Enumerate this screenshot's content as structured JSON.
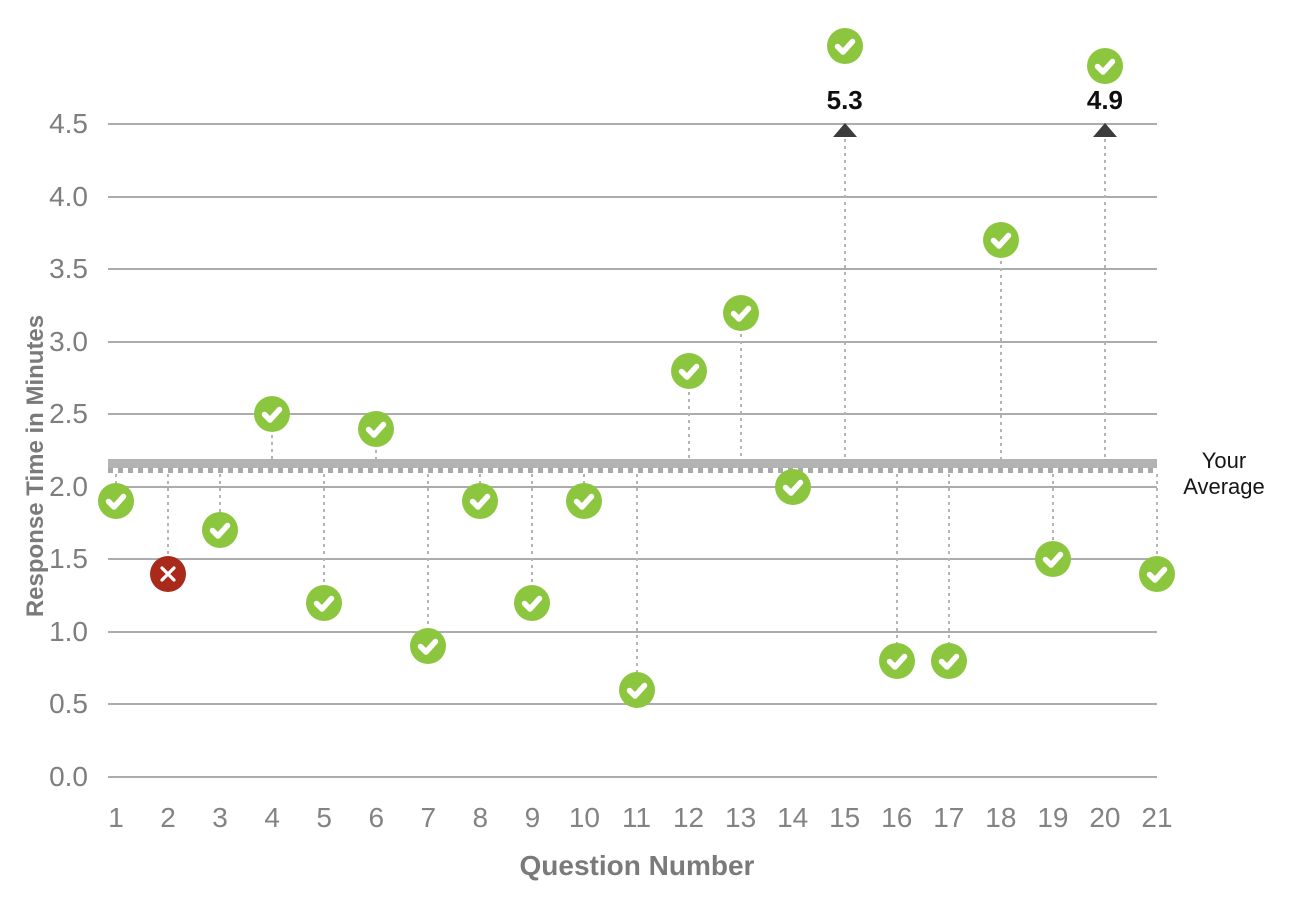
{
  "chart_data": {
    "type": "scatter",
    "title": "",
    "xlabel": "Question Number",
    "ylabel": "Response Time in Minutes",
    "x": [
      1,
      2,
      3,
      4,
      5,
      6,
      7,
      8,
      9,
      10,
      11,
      12,
      13,
      14,
      15,
      16,
      17,
      18,
      19,
      20,
      21
    ],
    "values": [
      1.9,
      1.4,
      1.7,
      2.5,
      1.2,
      2.4,
      0.9,
      1.9,
      1.2,
      1.9,
      0.6,
      2.8,
      3.2,
      2.0,
      5.3,
      0.8,
      0.8,
      3.7,
      1.5,
      4.9,
      1.4
    ],
    "status": [
      "correct",
      "incorrect",
      "correct",
      "correct",
      "correct",
      "correct",
      "correct",
      "correct",
      "correct",
      "correct",
      "correct",
      "correct",
      "correct",
      "correct",
      "correct",
      "correct",
      "correct",
      "correct",
      "correct",
      "correct",
      "correct"
    ],
    "yticks": [
      "0.0",
      "0.5",
      "1.0",
      "1.5",
      "2.0",
      "2.5",
      "3.0",
      "3.5",
      "4.0",
      "4.5"
    ],
    "ylim": [
      0,
      4.5
    ],
    "grid": "horizontal",
    "legend": "none",
    "offscale_annotations": [
      {
        "x": 15,
        "label": "5.3"
      },
      {
        "x": 20,
        "label": "4.9"
      }
    ],
    "average": {
      "value": 2.1,
      "label": "Your Average"
    }
  },
  "colors": {
    "correct": "#8CC63F",
    "incorrect": "#A9291B",
    "grid": "#ACACAC",
    "average_line": "#B3B3B3",
    "tick_text": "#7E7E7E",
    "annotation_text": "#0F0F0F",
    "arrow": "#3C3C3C"
  },
  "icons": {
    "correct": "check-icon",
    "incorrect": "x-icon"
  }
}
